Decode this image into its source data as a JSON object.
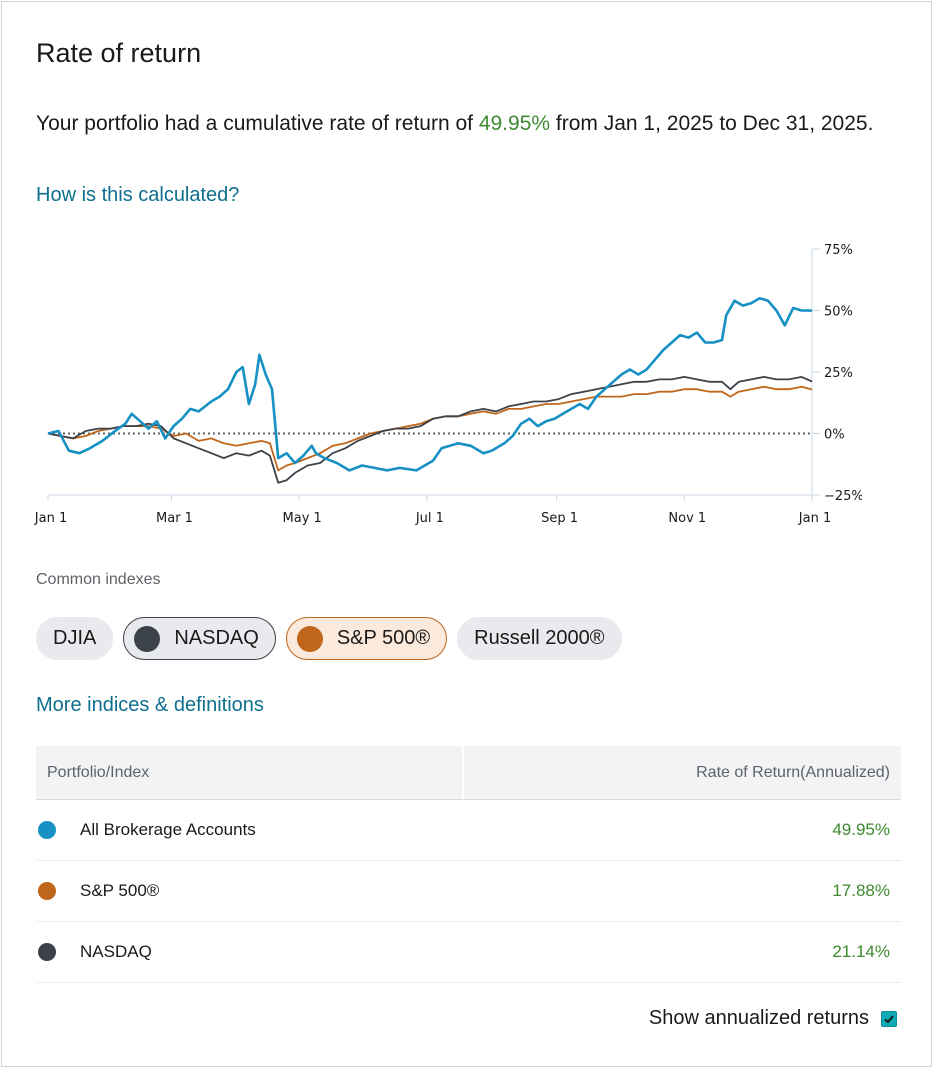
{
  "header": {
    "title": "Rate of return"
  },
  "summary": {
    "prefix": "Your portfolio had a cumulative rate of return of ",
    "rate": "49.95%",
    "suffix": " from Jan 1, 2025 to Dec 31, 2025."
  },
  "links": {
    "how_calculated": "How is this calculated?",
    "more_indices": "More indices & definitions"
  },
  "common_indexes": {
    "label": "Common indexes",
    "chips": [
      "DJIA",
      "NASDAQ",
      "S&P 500®",
      "Russell 2000®"
    ]
  },
  "colors": {
    "portfolio": "#1790c4",
    "sp500": "#c0661a",
    "nasdaq": "#3c4249",
    "positive": "#3e8a2f",
    "link": "#0e6f8e"
  },
  "table": {
    "headers": [
      "Portfolio/Index",
      "Rate of Return(Annualized)"
    ],
    "rows": [
      {
        "name": "All Brokerage Accounts",
        "value": "49.95%",
        "color": "#1790c4"
      },
      {
        "name": "S&P 500®",
        "value": "17.88%",
        "color": "#c0661a"
      },
      {
        "name": "NASDAQ",
        "value": "21.14%",
        "color": "#3c4249"
      }
    ]
  },
  "annualized": {
    "label": "Show annualized returns",
    "checked": true
  },
  "chart_data": {
    "type": "line",
    "x_tick_labels": [
      "Jan 1",
      "Mar 1",
      "May 1",
      "Jul 1",
      "Sep 1",
      "Nov 1",
      "Jan 1"
    ],
    "y_tick_labels": [
      "75%",
      "50%",
      "25%",
      "0%",
      "−25%"
    ],
    "ylim": [
      -25,
      75
    ],
    "y_ticks": [
      75,
      50,
      25,
      0,
      -25
    ],
    "x_range_days": [
      0,
      365
    ],
    "x_ticks_days": [
      0,
      59,
      120,
      181,
      243,
      304,
      365
    ],
    "zero_line": "dotted",
    "series": [
      {
        "key": "portfolio",
        "color": "#1790c4",
        "points": [
          [
            0,
            0
          ],
          [
            5,
            1
          ],
          [
            10,
            -7
          ],
          [
            15,
            -8
          ],
          [
            20,
            -6
          ],
          [
            26,
            -3
          ],
          [
            32,
            1
          ],
          [
            37,
            4
          ],
          [
            40,
            8
          ],
          [
            44,
            5
          ],
          [
            48,
            2
          ],
          [
            52,
            5
          ],
          [
            56,
            -2
          ],
          [
            60,
            3
          ],
          [
            64,
            6
          ],
          [
            68,
            10
          ],
          [
            72,
            9
          ],
          [
            78,
            13
          ],
          [
            82,
            15
          ],
          [
            86,
            18
          ],
          [
            90,
            25
          ],
          [
            93,
            27
          ],
          [
            96,
            12
          ],
          [
            99,
            20
          ],
          [
            101,
            32
          ],
          [
            104,
            24
          ],
          [
            107,
            18
          ],
          [
            110,
            -10
          ],
          [
            114,
            -8
          ],
          [
            118,
            -12
          ],
          [
            122,
            -9
          ],
          [
            126,
            -5
          ],
          [
            128,
            -8
          ],
          [
            132,
            -10
          ],
          [
            138,
            -12
          ],
          [
            144,
            -15
          ],
          [
            150,
            -13
          ],
          [
            156,
            -14
          ],
          [
            162,
            -15
          ],
          [
            168,
            -14
          ],
          [
            176,
            -15
          ],
          [
            184,
            -11
          ],
          [
            188,
            -6
          ],
          [
            192,
            -5
          ],
          [
            196,
            -4
          ],
          [
            202,
            -5
          ],
          [
            208,
            -8
          ],
          [
            212,
            -7
          ],
          [
            218,
            -4
          ],
          [
            222,
            -1
          ],
          [
            226,
            4
          ],
          [
            230,
            6
          ],
          [
            234,
            3
          ],
          [
            238,
            5
          ],
          [
            242,
            6
          ],
          [
            246,
            8
          ],
          [
            250,
            10
          ],
          [
            254,
            12
          ],
          [
            258,
            10
          ],
          [
            262,
            15
          ],
          [
            266,
            18
          ],
          [
            270,
            21
          ],
          [
            274,
            24
          ],
          [
            278,
            26
          ],
          [
            282,
            24
          ],
          [
            286,
            26
          ],
          [
            290,
            30
          ],
          [
            294,
            34
          ],
          [
            298,
            37
          ],
          [
            302,
            40
          ],
          [
            306,
            39
          ],
          [
            310,
            41
          ],
          [
            314,
            37
          ],
          [
            318,
            37
          ],
          [
            322,
            38
          ],
          [
            324,
            48
          ],
          [
            328,
            54
          ],
          [
            332,
            52
          ],
          [
            336,
            53
          ],
          [
            340,
            55
          ],
          [
            344,
            54
          ],
          [
            348,
            50
          ],
          [
            352,
            44
          ],
          [
            356,
            51
          ],
          [
            360,
            50
          ],
          [
            365,
            49.95
          ]
        ]
      },
      {
        "key": "sp500",
        "color": "#c0661a",
        "points": [
          [
            0,
            0
          ],
          [
            6,
            -1
          ],
          [
            12,
            -2
          ],
          [
            18,
            -1
          ],
          [
            24,
            1
          ],
          [
            30,
            2
          ],
          [
            36,
            3
          ],
          [
            42,
            3
          ],
          [
            48,
            3
          ],
          [
            54,
            2
          ],
          [
            60,
            -1
          ],
          [
            66,
            0
          ],
          [
            72,
            -3
          ],
          [
            78,
            -2
          ],
          [
            84,
            -4
          ],
          [
            90,
            -5
          ],
          [
            96,
            -4
          ],
          [
            102,
            -3
          ],
          [
            106,
            -4
          ],
          [
            110,
            -15
          ],
          [
            114,
            -13
          ],
          [
            118,
            -12
          ],
          [
            124,
            -10
          ],
          [
            130,
            -8
          ],
          [
            136,
            -5
          ],
          [
            142,
            -4
          ],
          [
            148,
            -2
          ],
          [
            154,
            0
          ],
          [
            160,
            1
          ],
          [
            166,
            2
          ],
          [
            172,
            3
          ],
          [
            178,
            4
          ],
          [
            184,
            6
          ],
          [
            190,
            7
          ],
          [
            196,
            7
          ],
          [
            202,
            8
          ],
          [
            208,
            9
          ],
          [
            214,
            8
          ],
          [
            220,
            10
          ],
          [
            226,
            10
          ],
          [
            232,
            11
          ],
          [
            238,
            12
          ],
          [
            244,
            12
          ],
          [
            250,
            13
          ],
          [
            256,
            14
          ],
          [
            262,
            15
          ],
          [
            268,
            15
          ],
          [
            274,
            15
          ],
          [
            280,
            16
          ],
          [
            286,
            16
          ],
          [
            292,
            17
          ],
          [
            298,
            17
          ],
          [
            304,
            18
          ],
          [
            310,
            18
          ],
          [
            316,
            17
          ],
          [
            322,
            17
          ],
          [
            326,
            15
          ],
          [
            330,
            17
          ],
          [
            336,
            18
          ],
          [
            342,
            19
          ],
          [
            348,
            18
          ],
          [
            354,
            18
          ],
          [
            360,
            19
          ],
          [
            365,
            17.88
          ]
        ]
      },
      {
        "key": "nasdaq",
        "color": "#3c4249",
        "points": [
          [
            0,
            0
          ],
          [
            6,
            -1
          ],
          [
            12,
            -2
          ],
          [
            18,
            1
          ],
          [
            24,
            2
          ],
          [
            30,
            2
          ],
          [
            36,
            3
          ],
          [
            42,
            3
          ],
          [
            48,
            4
          ],
          [
            54,
            3
          ],
          [
            60,
            -2
          ],
          [
            66,
            -4
          ],
          [
            72,
            -6
          ],
          [
            78,
            -8
          ],
          [
            84,
            -10
          ],
          [
            90,
            -8
          ],
          [
            96,
            -9
          ],
          [
            102,
            -7
          ],
          [
            106,
            -9
          ],
          [
            110,
            -20
          ],
          [
            114,
            -19
          ],
          [
            118,
            -16
          ],
          [
            124,
            -13
          ],
          [
            130,
            -12
          ],
          [
            136,
            -8
          ],
          [
            142,
            -6
          ],
          [
            148,
            -3
          ],
          [
            154,
            -1
          ],
          [
            160,
            1
          ],
          [
            166,
            2
          ],
          [
            172,
            2
          ],
          [
            178,
            3
          ],
          [
            184,
            6
          ],
          [
            190,
            7
          ],
          [
            196,
            7
          ],
          [
            202,
            9
          ],
          [
            208,
            10
          ],
          [
            214,
            9
          ],
          [
            220,
            11
          ],
          [
            226,
            12
          ],
          [
            232,
            13
          ],
          [
            238,
            13
          ],
          [
            244,
            14
          ],
          [
            250,
            16
          ],
          [
            256,
            17
          ],
          [
            262,
            18
          ],
          [
            268,
            19
          ],
          [
            274,
            20
          ],
          [
            280,
            21
          ],
          [
            286,
            21
          ],
          [
            292,
            22
          ],
          [
            298,
            22
          ],
          [
            304,
            23
          ],
          [
            310,
            22
          ],
          [
            316,
            21
          ],
          [
            322,
            21
          ],
          [
            326,
            18
          ],
          [
            330,
            21
          ],
          [
            336,
            22
          ],
          [
            342,
            23
          ],
          [
            348,
            22
          ],
          [
            354,
            22
          ],
          [
            360,
            23
          ],
          [
            365,
            21.14
          ]
        ]
      }
    ]
  }
}
